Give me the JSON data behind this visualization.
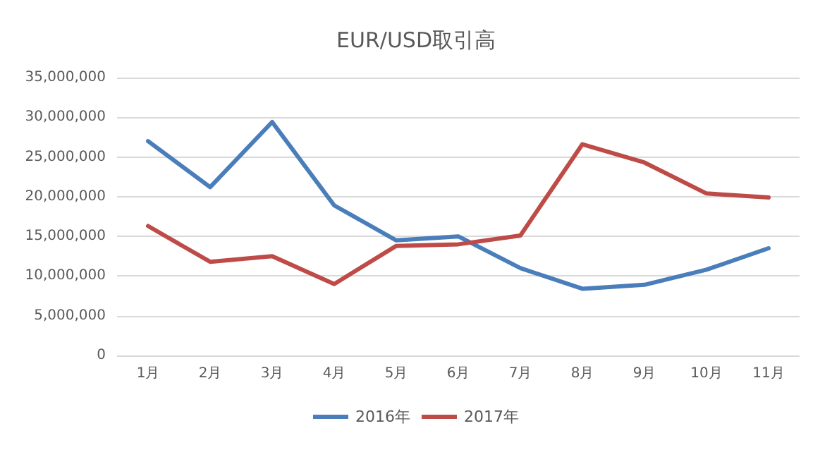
{
  "chart_data": {
    "type": "line",
    "title": "EUR/USD取引高",
    "categories": [
      "1月",
      "2月",
      "3月",
      "4月",
      "5月",
      "6月",
      "7月",
      "8月",
      "9月",
      "10月",
      "11月"
    ],
    "series": [
      {
        "name": "2016年",
        "color": "#4a7ebb",
        "values": [
          27000000,
          21200000,
          29400000,
          18900000,
          14500000,
          15000000,
          11000000,
          8400000,
          8900000,
          10800000,
          13500000
        ]
      },
      {
        "name": "2017年",
        "color": "#be4b48",
        "values": [
          16300000,
          11800000,
          12500000,
          9000000,
          13800000,
          14000000,
          15100000,
          26600000,
          24300000,
          20400000,
          19900000
        ]
      }
    ],
    "ylim": [
      0,
      35000000
    ],
    "yticks": [
      0,
      {
        "value": 5000000,
        "label": "5,000,000"
      },
      {
        "value": 10000000,
        "label": "10,000,000"
      },
      {
        "value": 15000000,
        "label": "15,000,000"
      },
      {
        "value": 20000000,
        "label": "20,000,000"
      },
      {
        "value": 25000000,
        "label": "25,000,000"
      },
      {
        "value": 30000000,
        "label": "30,000,000"
      },
      {
        "value": 35000000,
        "label": "35,000,000"
      }
    ],
    "grid": "y",
    "legend": "bottom",
    "marker": "none",
    "line_style": "solid"
  }
}
